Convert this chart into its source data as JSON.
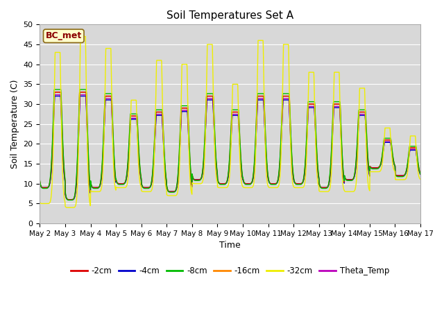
{
  "title": "Soil Temperatures Set A",
  "xlabel": "Time",
  "ylabel": "Soil Temperature (C)",
  "ylim": [
    0,
    50
  ],
  "yticks": [
    0,
    5,
    10,
    15,
    20,
    25,
    30,
    35,
    40,
    45,
    50
  ],
  "bg_color": "#d8d8d8",
  "annotation_text": "BC_met",
  "annotation_bg": "#ffffcc",
  "annotation_border": "#8B6914",
  "annotation_fg": "#8B0000",
  "legend_labels": [
    "-2cm",
    "-4cm",
    "-8cm",
    "-16cm",
    "-32cm",
    "Theta_Temp"
  ],
  "line_colors": [
    "#dd0000",
    "#0000cc",
    "#00bb00",
    "#ff8800",
    "#eeee00",
    "#bb00bb"
  ],
  "xtick_labels": [
    "May 2",
    "May 3",
    "May 4",
    "May 5",
    "May 6",
    "May 7",
    "May 8",
    "May 9",
    "May 10",
    "May 11",
    "May 12",
    "May 13",
    "May 14",
    "May 15",
    "May 16",
    "May 17"
  ],
  "n_days": 15,
  "pts_per_day": 144,
  "day_maxes_base": [
    33,
    33,
    32,
    27,
    28,
    29,
    32,
    28,
    32,
    32,
    30,
    30,
    28,
    21,
    19
  ],
  "day_maxes_yellow": [
    43,
    47,
    44,
    31,
    41,
    40,
    45,
    35,
    46,
    45,
    38,
    38,
    34,
    24,
    22
  ],
  "day_mins_base": [
    9,
    6,
    9,
    10,
    9,
    8,
    11,
    10,
    10,
    10,
    10,
    9,
    11,
    14,
    12
  ],
  "day_mins_yellow": [
    5,
    4,
    8,
    9,
    8,
    7,
    10,
    9,
    9,
    9,
    9,
    8,
    8,
    13,
    11
  ]
}
